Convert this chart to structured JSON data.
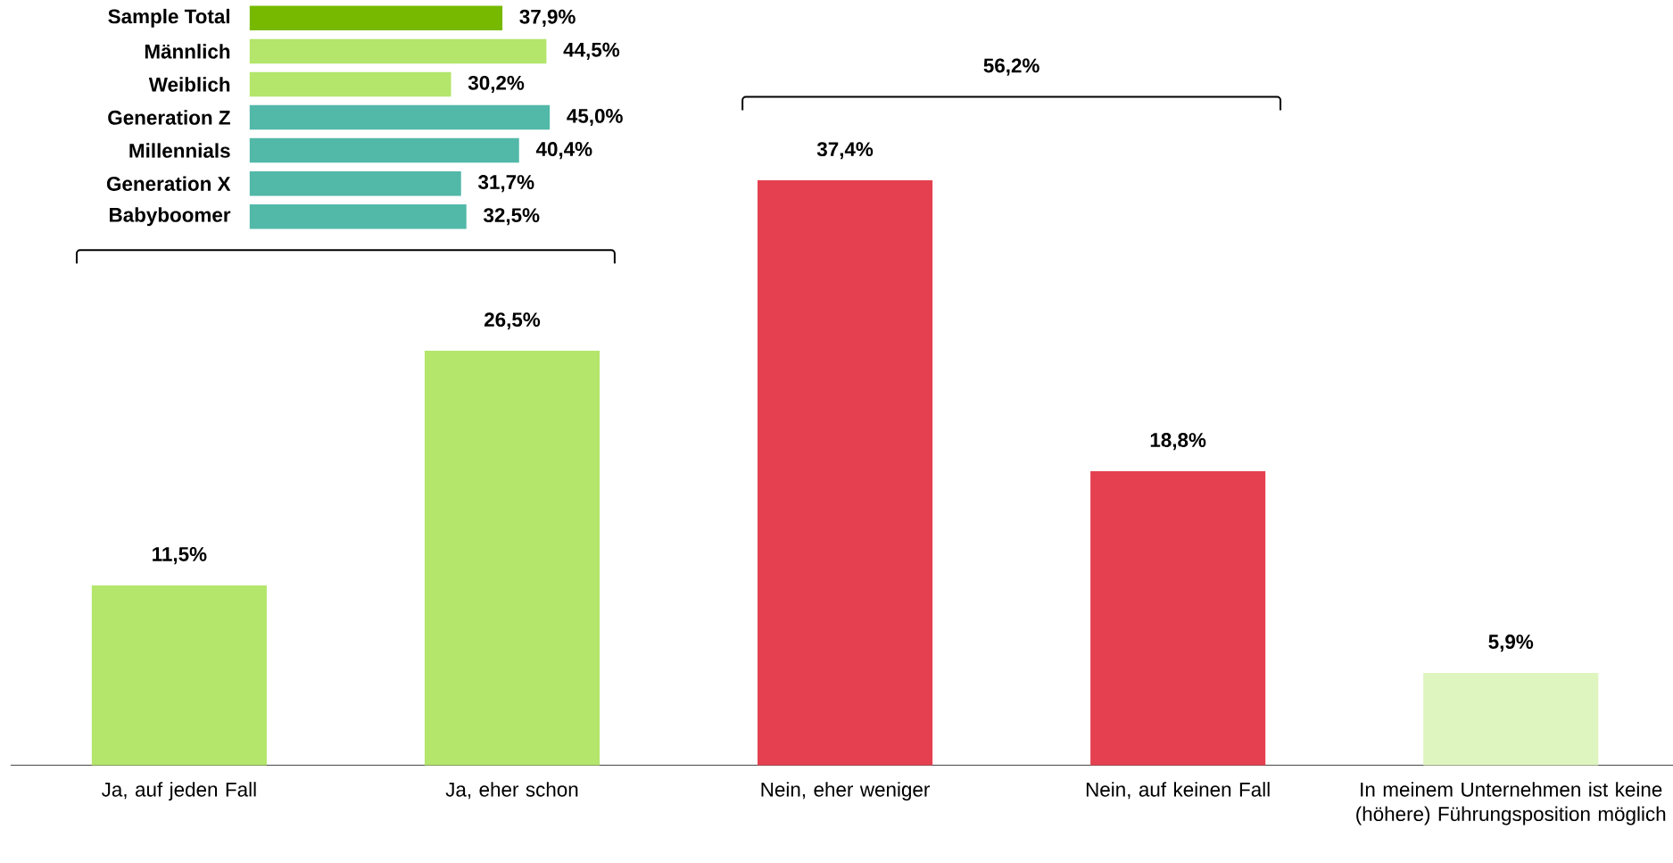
{
  "chart_data": [
    {
      "type": "bar",
      "categories": [
        "Ja, auf jeden Fall",
        "Ja, eher schon",
        "Nein, eher weniger",
        "Nein, auf keinen Fall",
        "In meinem Unternehmen ist keine (höhere) Führungsposition möglich"
      ],
      "values": [
        11.5,
        26.5,
        37.4,
        18.8,
        5.9
      ],
      "colors": [
        "#b3e66b",
        "#b3e66b",
        "#e54050",
        "#e54050",
        "#dff5c0"
      ],
      "value_labels": [
        "11,5%",
        "26,5%",
        "37,4%",
        "18,8%",
        "5,9%"
      ],
      "annotations": [
        "56,2%"
      ],
      "tick_labels": "x"
    },
    {
      "type": "bar",
      "orientation": "horizontal",
      "categories": [
        "Sample Total",
        "Männlich",
        "Weiblich",
        "Generation Z",
        "Millennials",
        "Generation X",
        "Babyboomer"
      ],
      "values": [
        37.9,
        44.5,
        30.2,
        45.0,
        40.4,
        31.7,
        32.5
      ],
      "colors": [
        "#76b900",
        "#b3e66b",
        "#b3e66b",
        "#52b8a8",
        "#52b8a8",
        "#52b8a8",
        "#52b8a8"
      ],
      "value_labels": [
        "37,9%",
        "44,5%",
        "30,2%",
        "45,0%",
        "40,4%",
        "31,7%",
        "32,5%"
      ],
      "tick_labels": "y"
    }
  ]
}
